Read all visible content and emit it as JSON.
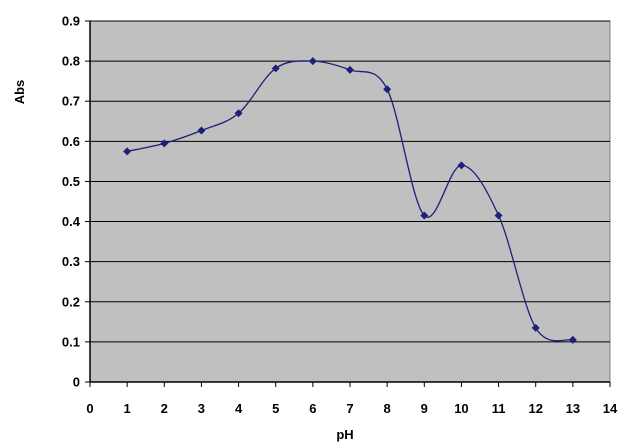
{
  "chart_data": {
    "type": "scatter",
    "title": "",
    "xlabel": "pH",
    "ylabel": "Abs",
    "xlim": [
      0,
      14
    ],
    "ylim": [
      0,
      0.9
    ],
    "x_tick_labels": [
      "0",
      "1",
      "2",
      "3",
      "4",
      "5",
      "6",
      "7",
      "8",
      "9",
      "10",
      "11",
      "12",
      "13",
      "14"
    ],
    "y_tick_labels": [
      "0",
      "0.1",
      "0.2",
      "0.3",
      "0.4",
      "0.5",
      "0.6",
      "0.7",
      "0.8",
      "0.9"
    ],
    "grid": "horizontal",
    "legend": "none",
    "line": "smoothed",
    "plot_background": "#c0c0c0",
    "series_color": "#1f1f7a",
    "marker": "diamond",
    "series": [
      {
        "x": [
          1,
          2,
          3,
          4,
          5,
          6,
          7,
          8,
          9,
          10,
          11,
          12,
          13
        ],
        "y": [
          0.575,
          0.595,
          0.627,
          0.67,
          0.782,
          0.8,
          0.778,
          0.73,
          0.415,
          0.54,
          0.415,
          0.135,
          0.105
        ]
      }
    ]
  }
}
